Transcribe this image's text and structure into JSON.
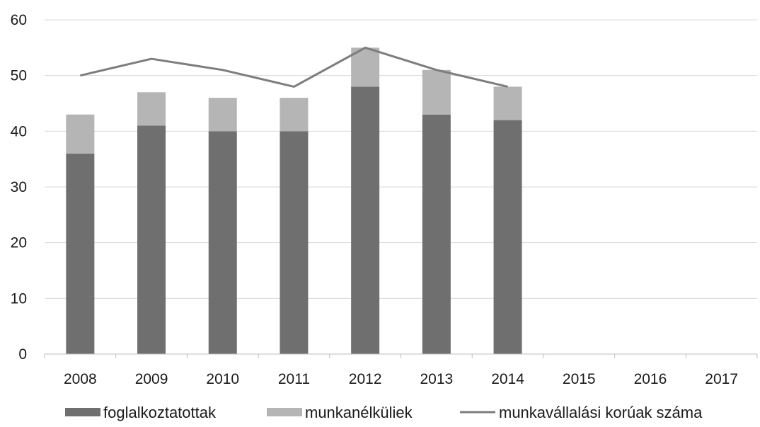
{
  "chart_data": {
    "type": "bar",
    "stacked": true,
    "categories": [
      "2008",
      "2009",
      "2010",
      "2011",
      "2012",
      "2013",
      "2014",
      "2015",
      "2016",
      "2017"
    ],
    "series": [
      {
        "name": "foglalkoztatottak",
        "kind": "bar",
        "color": "#6f6f6f",
        "values": [
          36,
          41,
          40,
          40,
          48,
          43,
          42,
          null,
          null,
          null
        ]
      },
      {
        "name": "munkanélküliek",
        "kind": "bar",
        "color": "#b5b5b5",
        "values": [
          7,
          6,
          6,
          6,
          7,
          8,
          6,
          null,
          null,
          null
        ]
      },
      {
        "name": "munkavállalási korúak száma",
        "kind": "line",
        "color": "#7d7d7d",
        "values": [
          50,
          53,
          51,
          48,
          55,
          51,
          48,
          null,
          null,
          null
        ]
      }
    ],
    "yticks": [
      "0",
      "10",
      "20",
      "30",
      "40",
      "50",
      "60"
    ],
    "ylim": [
      0,
      60
    ],
    "grid": true,
    "legend": "bottom",
    "title": "",
    "xlabel": "",
    "ylabel": ""
  }
}
